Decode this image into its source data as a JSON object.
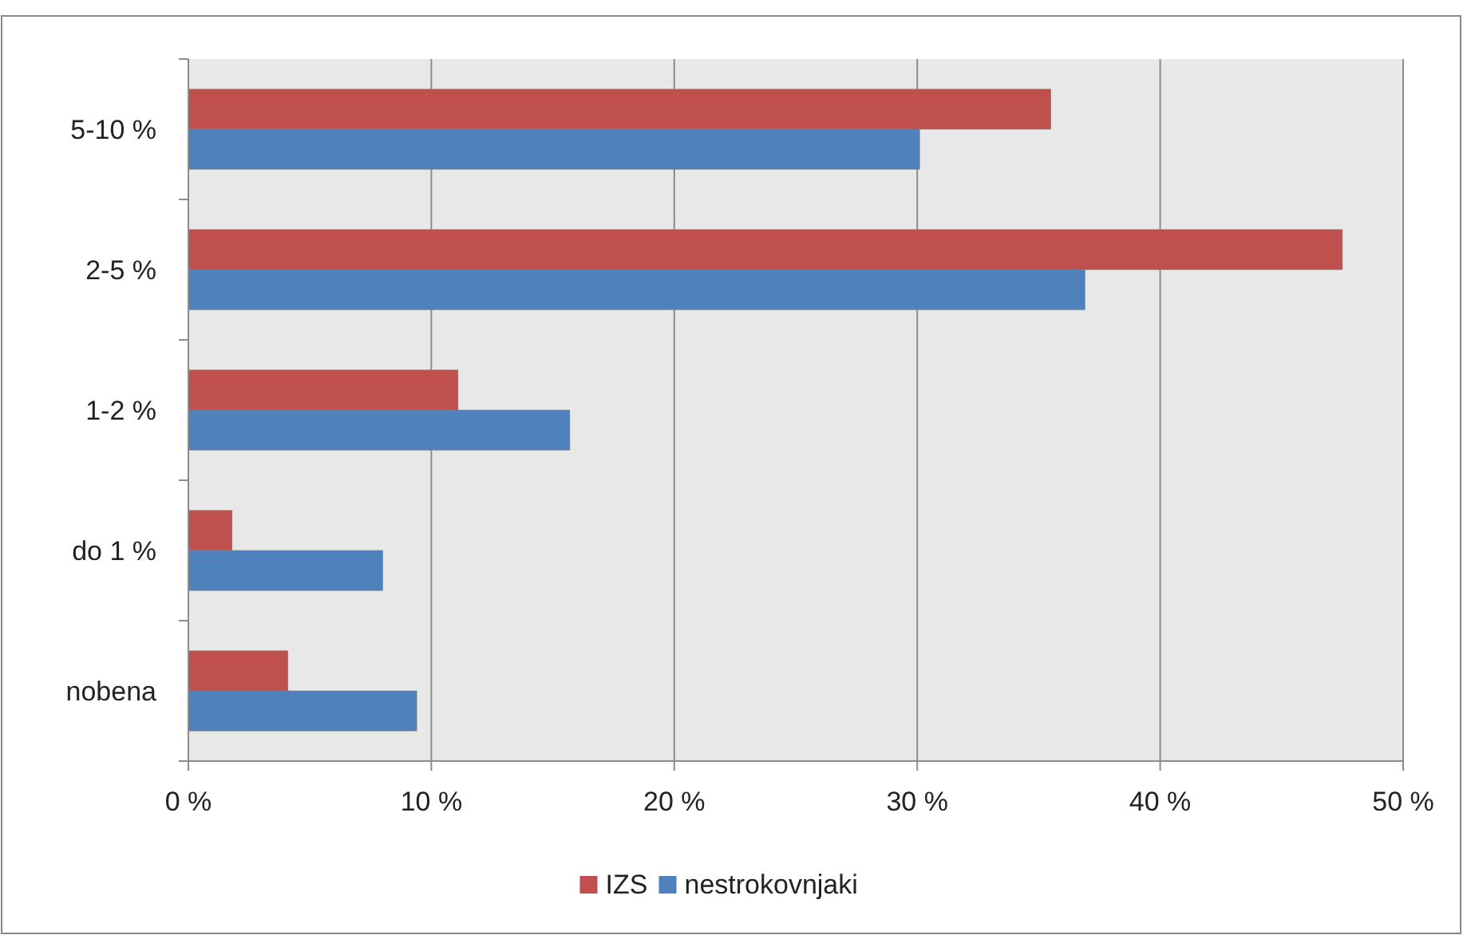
{
  "chart_data": {
    "type": "bar",
    "orientation": "horizontal",
    "categories": [
      "5-10 %",
      "2-5 %",
      "1-2 %",
      "do 1 %",
      "nobena"
    ],
    "series": [
      {
        "name": "IZS",
        "color": "#c0504d",
        "values": [
          35.5,
          47.5,
          11.1,
          1.8,
          4.1
        ]
      },
      {
        "name": "nestrokovnjaki",
        "color": "#4f81bd",
        "values": [
          30.1,
          36.9,
          15.7,
          8.0,
          9.4
        ]
      }
    ],
    "xlim": [
      0,
      50
    ],
    "xticks": [
      {
        "value": 0,
        "label": "0 %"
      },
      {
        "value": 10,
        "label": "10 %"
      },
      {
        "value": 20,
        "label": "20 %"
      },
      {
        "value": 30,
        "label": "30 %"
      },
      {
        "value": 40,
        "label": "40 %"
      },
      {
        "value": 50,
        "label": "50 %"
      }
    ],
    "grid": "x",
    "legend": "bottom"
  }
}
